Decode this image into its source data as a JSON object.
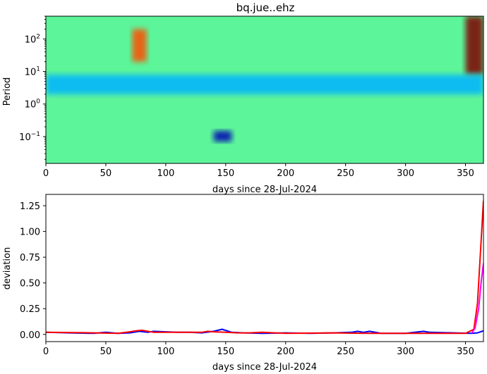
{
  "chart_data": [
    {
      "type": "heatmap",
      "title": "bq.jue..ehz",
      "xlabel": "days since 28-Jul-2024",
      "ylabel": "Period",
      "x_range": [
        0,
        365
      ],
      "y_scale": "log",
      "y_range": [
        0.015,
        500
      ],
      "x_ticks": [
        0,
        50,
        100,
        150,
        200,
        250,
        300,
        350
      ],
      "y_ticks": [
        {
          "value": 0.1,
          "base": "10",
          "exp": "−1"
        },
        {
          "value": 1,
          "base": "10",
          "exp": "0"
        },
        {
          "value": 10,
          "base": "10",
          "exp": "1"
        },
        {
          "value": 100,
          "base": "10",
          "exp": "2"
        }
      ],
      "colormap": "jet",
      "features": [
        {
          "x": [
            72,
            84
          ],
          "period": [
            20,
            200
          ],
          "level": 0.8
        },
        {
          "x": [
            350,
            365
          ],
          "period": [
            8,
            500
          ],
          "level": 1.0
        },
        {
          "x": [
            140,
            155
          ],
          "period": [
            0.07,
            0.15
          ],
          "level": 0.05
        },
        {
          "x": [
            0,
            365
          ],
          "period": [
            2,
            8
          ],
          "level": 0.3
        }
      ]
    },
    {
      "type": "line",
      "xlabel": "days since 28-Jul-2024",
      "ylabel": "deviation",
      "xlim": [
        0,
        365
      ],
      "ylim": [
        -0.07,
        1.36
      ],
      "x_ticks": [
        0,
        50,
        100,
        150,
        200,
        250,
        300,
        350
      ],
      "y_ticks": [
        "0.00",
        "0.25",
        "0.50",
        "0.75",
        "1.00",
        "1.25"
      ],
      "series": [
        {
          "color": "#0000ff",
          "x": [
            0,
            20,
            40,
            50,
            60,
            70,
            78,
            85,
            90,
            100,
            110,
            120,
            130,
            140,
            147,
            155,
            165,
            180,
            200,
            220,
            240,
            255,
            260,
            265,
            270,
            280,
            300,
            315,
            320,
            340,
            355,
            360,
            365
          ],
          "y": [
            0.02,
            0.015,
            0.01,
            0.02,
            0.01,
            0.015,
            0.03,
            0.02,
            0.03,
            0.025,
            0.02,
            0.02,
            0.015,
            0.03,
            0.05,
            0.02,
            0.015,
            0.01,
            0.015,
            0.01,
            0.015,
            0.02,
            0.03,
            0.02,
            0.03,
            0.01,
            0.01,
            0.03,
            0.02,
            0.015,
            0.01,
            0.015,
            0.035
          ]
        },
        {
          "color": "#ff0000",
          "x": [
            0,
            20,
            40,
            60,
            70,
            75,
            80,
            85,
            90,
            100,
            120,
            130,
            135,
            140,
            150,
            160,
            170,
            180,
            200,
            240,
            270,
            300,
            330,
            350,
            357,
            360,
            362,
            364,
            365
          ],
          "y": [
            0.02,
            0.018,
            0.015,
            0.01,
            0.025,
            0.035,
            0.04,
            0.03,
            0.02,
            0.02,
            0.02,
            0.02,
            0.03,
            0.025,
            0.02,
            0.015,
            0.015,
            0.02,
            0.01,
            0.015,
            0.01,
            0.01,
            0.01,
            0.01,
            0.05,
            0.3,
            0.7,
            1.1,
            1.3
          ]
        },
        {
          "color": "#ff00ff",
          "x": [
            355,
            358,
            361,
            363,
            365
          ],
          "y": [
            0.01,
            0.06,
            0.25,
            0.5,
            0.69
          ]
        }
      ]
    }
  ]
}
